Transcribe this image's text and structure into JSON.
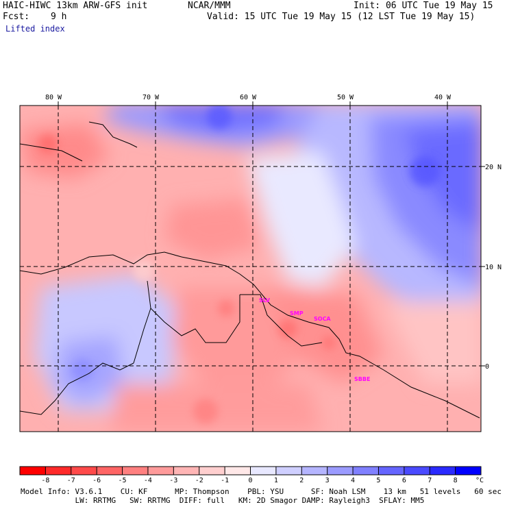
{
  "header": {
    "model": "HAIC-HIWC 13km ARW-GFS init",
    "org": "NCAR/MMM",
    "init": "Init: 06 UTC Tue 19 May 15",
    "fcst_label": "Fcst:",
    "fcst_value": "9 h",
    "valid": "Valid: 15 UTC Tue 19 May 15 (12 LST Tue 19 May 15)",
    "field": "Lifted index"
  },
  "map": {
    "lon_labels": [
      "80 W",
      "70 W",
      "60 W",
      "50 W",
      "40 W"
    ],
    "lat_labels": [
      "20 N",
      "10 N",
      "0"
    ],
    "stations": [
      "SLV",
      "SMP",
      "SOCA",
      "SBBE"
    ]
  },
  "colorbar": {
    "ticks": [
      "-8",
      "-7",
      "-6",
      "-5",
      "-4",
      "-3",
      "-2",
      "-1",
      "0",
      "1",
      "2",
      "3",
      "4",
      "5",
      "6",
      "7",
      "8"
    ],
    "unit": "°C",
    "colors": [
      "#ff0000",
      "#ff2a2a",
      "#ff4a4a",
      "#ff6565",
      "#ff8080",
      "#ff9b9b",
      "#ffb5b5",
      "#ffcfcf",
      "#ffe8e8",
      "#e8e8ff",
      "#cfcfff",
      "#b5b5ff",
      "#9b9bff",
      "#8080ff",
      "#6565ff",
      "#4a4aff",
      "#2a2aff",
      "#0000ff"
    ]
  },
  "footer": {
    "line1": "Model Info: V3.6.1    CU: KF      MP: Thompson    PBL: YSU      SF: Noah LSM    13 km   51 levels   60 sec",
    "line2": "            LW: RRTMG   SW: RRTMG  DIFF: full   KM: 2D Smagor DAMP: Rayleigh3  SFLAY: MM5"
  }
}
